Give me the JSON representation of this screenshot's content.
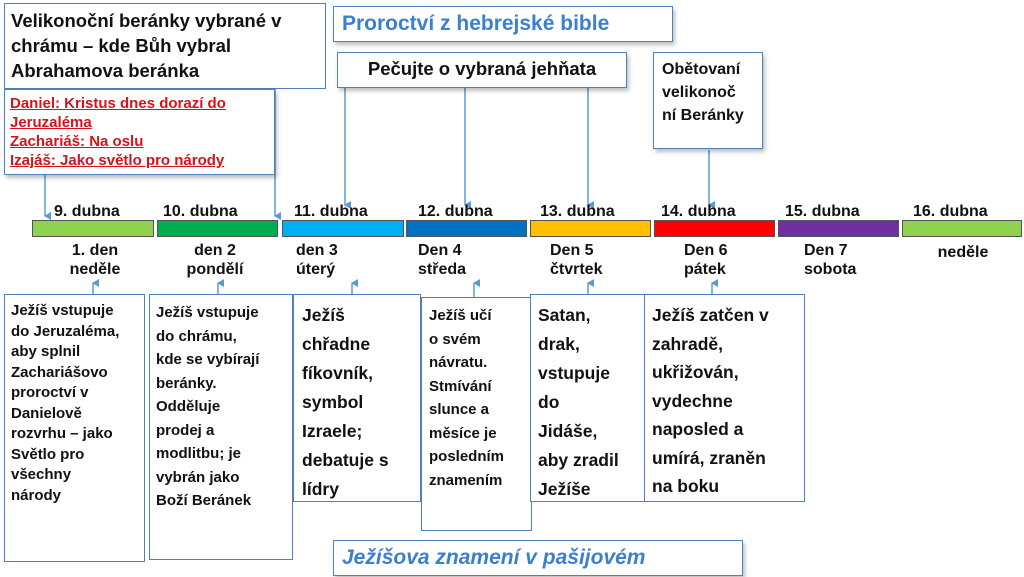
{
  "header": {
    "top_left_lines": [
      "Velikonoční beránky vybrané v",
      "chrámu – kde Bůh vybral",
      "Abrahamova beránka"
    ],
    "prophecy_title": "Proroctví z hebrejské bible",
    "care_title": "Pečujte o vybraná jehňata",
    "sacrifice_lines": [
      "Obětovaní",
      "velikonoč",
      "ní Beránky"
    ]
  },
  "prophecies": [
    "Daniel: Kristus dnes dorazí do",
    "Jeruzaléma",
    "Zachariáš: Na oslu",
    "Izajáš: Jako světlo pro národy"
  ],
  "timeline": [
    {
      "date": "9. dubna",
      "day": "1. den\nneděle",
      "color": "#92d050"
    },
    {
      "date": "10. dubna",
      "day": "den 2\npondělí",
      "color": "#00b050"
    },
    {
      "date": "11. dubna",
      "day": "den 3\núterý",
      "color": "#00b0f0"
    },
    {
      "date": "12. dubna",
      "day": "Den 4\nstředa",
      "color": "#0070c0"
    },
    {
      "date": "13. dubna",
      "day": "Den 5\nčtvrtek",
      "color": "#ffc000"
    },
    {
      "date": "14. dubna",
      "day": "Den 6\npátek",
      "color": "#ff0000"
    },
    {
      "date": "15. dubna",
      "day": "Den 7\nsobota",
      "color": "#7030a0"
    },
    {
      "date": "16. dubna",
      "day": "neděle",
      "color": "#92d050"
    }
  ],
  "events": [
    "Ježíš vstupuje\ndo Jeruzaléma,\naby splnil\nZachariášovo\nproroctví v\nDanielově\nrozvrhu – jako\nSvětlo pro\nvšechny\nnárody",
    "Ježíš vstupuje\ndo chrámu,\nkde se vybírají\nberánky.\nOdděluje\nprodej a\nmodlitbu; je\nvybrán jako\nBoží Beránek",
    "Ježíš\nchřadne\nfíkovník,\nsymbol\nIzraele;\ndebatuje s\nlídry",
    "Ježíš učí\no svém\nnávratu.\nStmívání\nslunce a\nměsíce je\nposledním\nznamením",
    "Satan,\ndrak,\nvstupuje\ndo\nJidáše,\naby zradil\nJežíše",
    "Ježíš zatčen v\nzahradě,\nukřižován,\nvydechne\nnaposled a\numírá, zraněn\nna boku"
  ],
  "footer": {
    "signs_title": "Ježíšova znamení v pašijovém"
  },
  "colors": {
    "border_blue": "#4f81bd",
    "title_blue": "#3b7fd0",
    "prophecy_red": "#d6121a",
    "arrow_blue": "#5b9bd5"
  }
}
